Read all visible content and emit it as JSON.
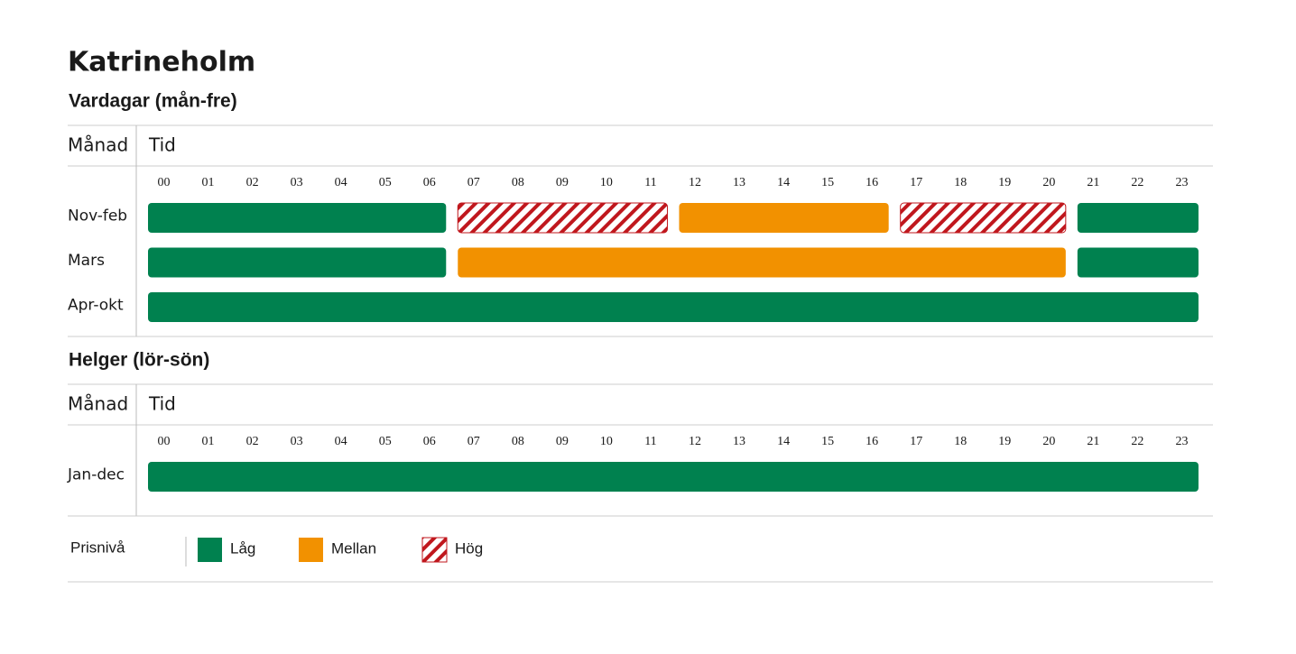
{
  "title": "Katrineholm",
  "sections": [
    {
      "title": "Vardagar (mån-fre)",
      "month_header": "Månad",
      "time_header": "Tid",
      "hours": [
        "00",
        "01",
        "02",
        "03",
        "04",
        "05",
        "06",
        "07",
        "08",
        "09",
        "10",
        "11",
        "12",
        "13",
        "14",
        "15",
        "16",
        "17",
        "18",
        "19",
        "20",
        "21",
        "22",
        "23"
      ],
      "rows": [
        {
          "label": "Nov-feb",
          "levels": [
            0,
            0,
            0,
            0,
            0,
            0,
            0,
            2,
            2,
            2,
            2,
            2,
            1,
            1,
            1,
            1,
            1,
            2,
            2,
            2,
            2,
            0,
            0,
            0
          ]
        },
        {
          "label": "Mars",
          "levels": [
            0,
            0,
            0,
            0,
            0,
            0,
            0,
            1,
            1,
            1,
            1,
            1,
            1,
            1,
            1,
            1,
            1,
            1,
            1,
            1,
            1,
            0,
            0,
            0
          ]
        },
        {
          "label": "Apr-okt",
          "levels": [
            0,
            0,
            0,
            0,
            0,
            0,
            0,
            0,
            0,
            0,
            0,
            0,
            0,
            0,
            0,
            0,
            0,
            0,
            0,
            0,
            0,
            0,
            0,
            0
          ]
        }
      ]
    },
    {
      "title": "Helger (lör-sön)",
      "month_header": "Månad",
      "time_header": "Tid",
      "hours": [
        "00",
        "01",
        "02",
        "03",
        "04",
        "05",
        "06",
        "07",
        "08",
        "09",
        "10",
        "11",
        "12",
        "13",
        "14",
        "15",
        "16",
        "17",
        "18",
        "19",
        "20",
        "21",
        "22",
        "23"
      ],
      "rows": [
        {
          "label": "Jan-dec",
          "levels": [
            0,
            0,
            0,
            0,
            0,
            0,
            0,
            0,
            0,
            0,
            0,
            0,
            0,
            0,
            0,
            0,
            0,
            0,
            0,
            0,
            0,
            0,
            0,
            0
          ]
        }
      ]
    }
  ],
  "legend": {
    "title": "Prisnivå",
    "items": [
      {
        "label": "Låg",
        "color": "#00814f"
      },
      {
        "label": "Mellan",
        "color": "#f29100"
      },
      {
        "label": "Hög",
        "color": "#c0171d",
        "pattern": "hatch"
      }
    ]
  }
}
